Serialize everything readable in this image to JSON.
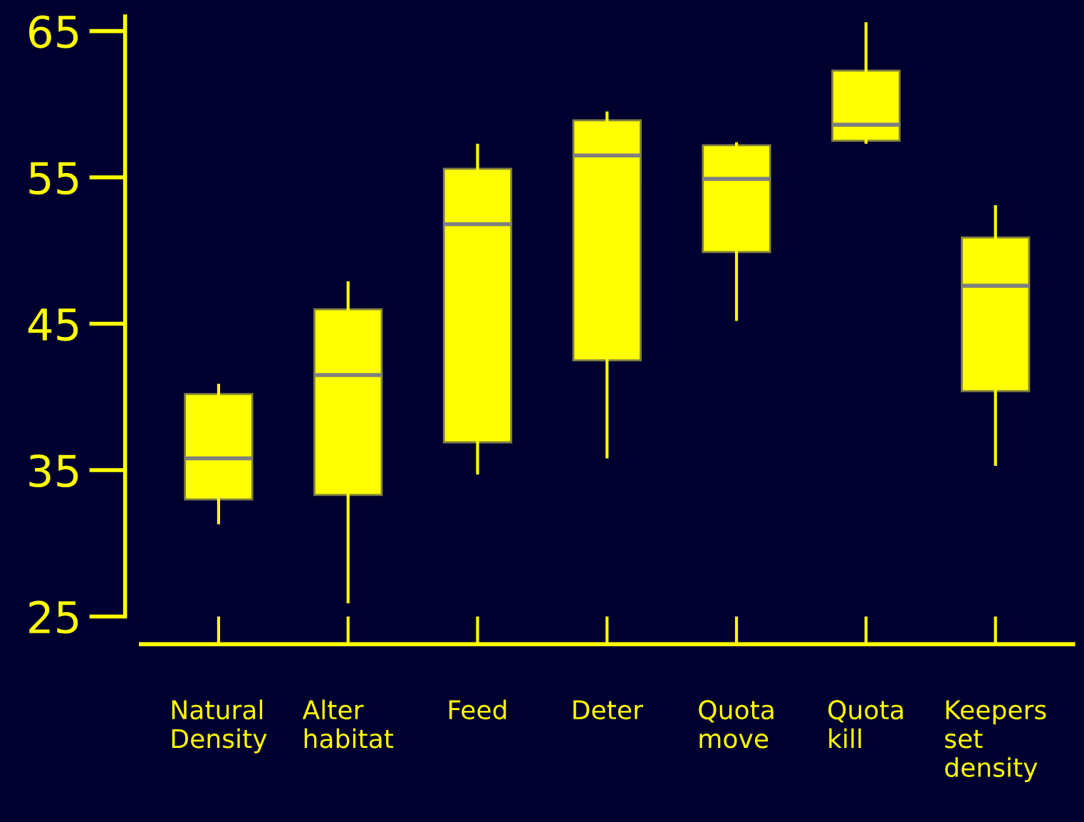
{
  "chart_data": {
    "type": "box",
    "categories": [
      "Natural\nDensity",
      "Alter\nhabitat",
      "Feed",
      "Deter",
      "Quota\nmove",
      "Quota\nkill",
      "Keepers\nset\ndensity"
    ],
    "series": [
      {
        "color": "#ffff00",
        "boxes": [
          {
            "low": 31.4,
            "q1": 33.0,
            "median": 35.8,
            "q3": 40.2,
            "high": 40.8
          },
          {
            "low": 26,
            "q1": 33.3,
            "median": 41.5,
            "q3": 46.0,
            "high": 47.8
          },
          {
            "low": 34.8,
            "q1": 36.9,
            "median": 51.8,
            "q3": 55.6,
            "high": 57.2
          },
          {
            "low": 35.9,
            "q1": 42.5,
            "median": 56.5,
            "q3": 58.9,
            "high": 59.4
          },
          {
            "low": 45.3,
            "q1": 49.9,
            "median": 54.9,
            "q3": 57.2,
            "high": 57.3
          },
          {
            "low": 57.4,
            "q1": 57.5,
            "median": 58.6,
            "q3": 62.3,
            "high": 65.5
          },
          {
            "low": 35.4,
            "q1": 40.4,
            "median": 47.6,
            "q3": 50.9,
            "high": 53.0
          }
        ]
      }
    ],
    "ylim": [
      25,
      66
    ],
    "yticks": [
      25,
      35,
      45,
      55,
      65
    ],
    "grid": false,
    "legend": false
  }
}
